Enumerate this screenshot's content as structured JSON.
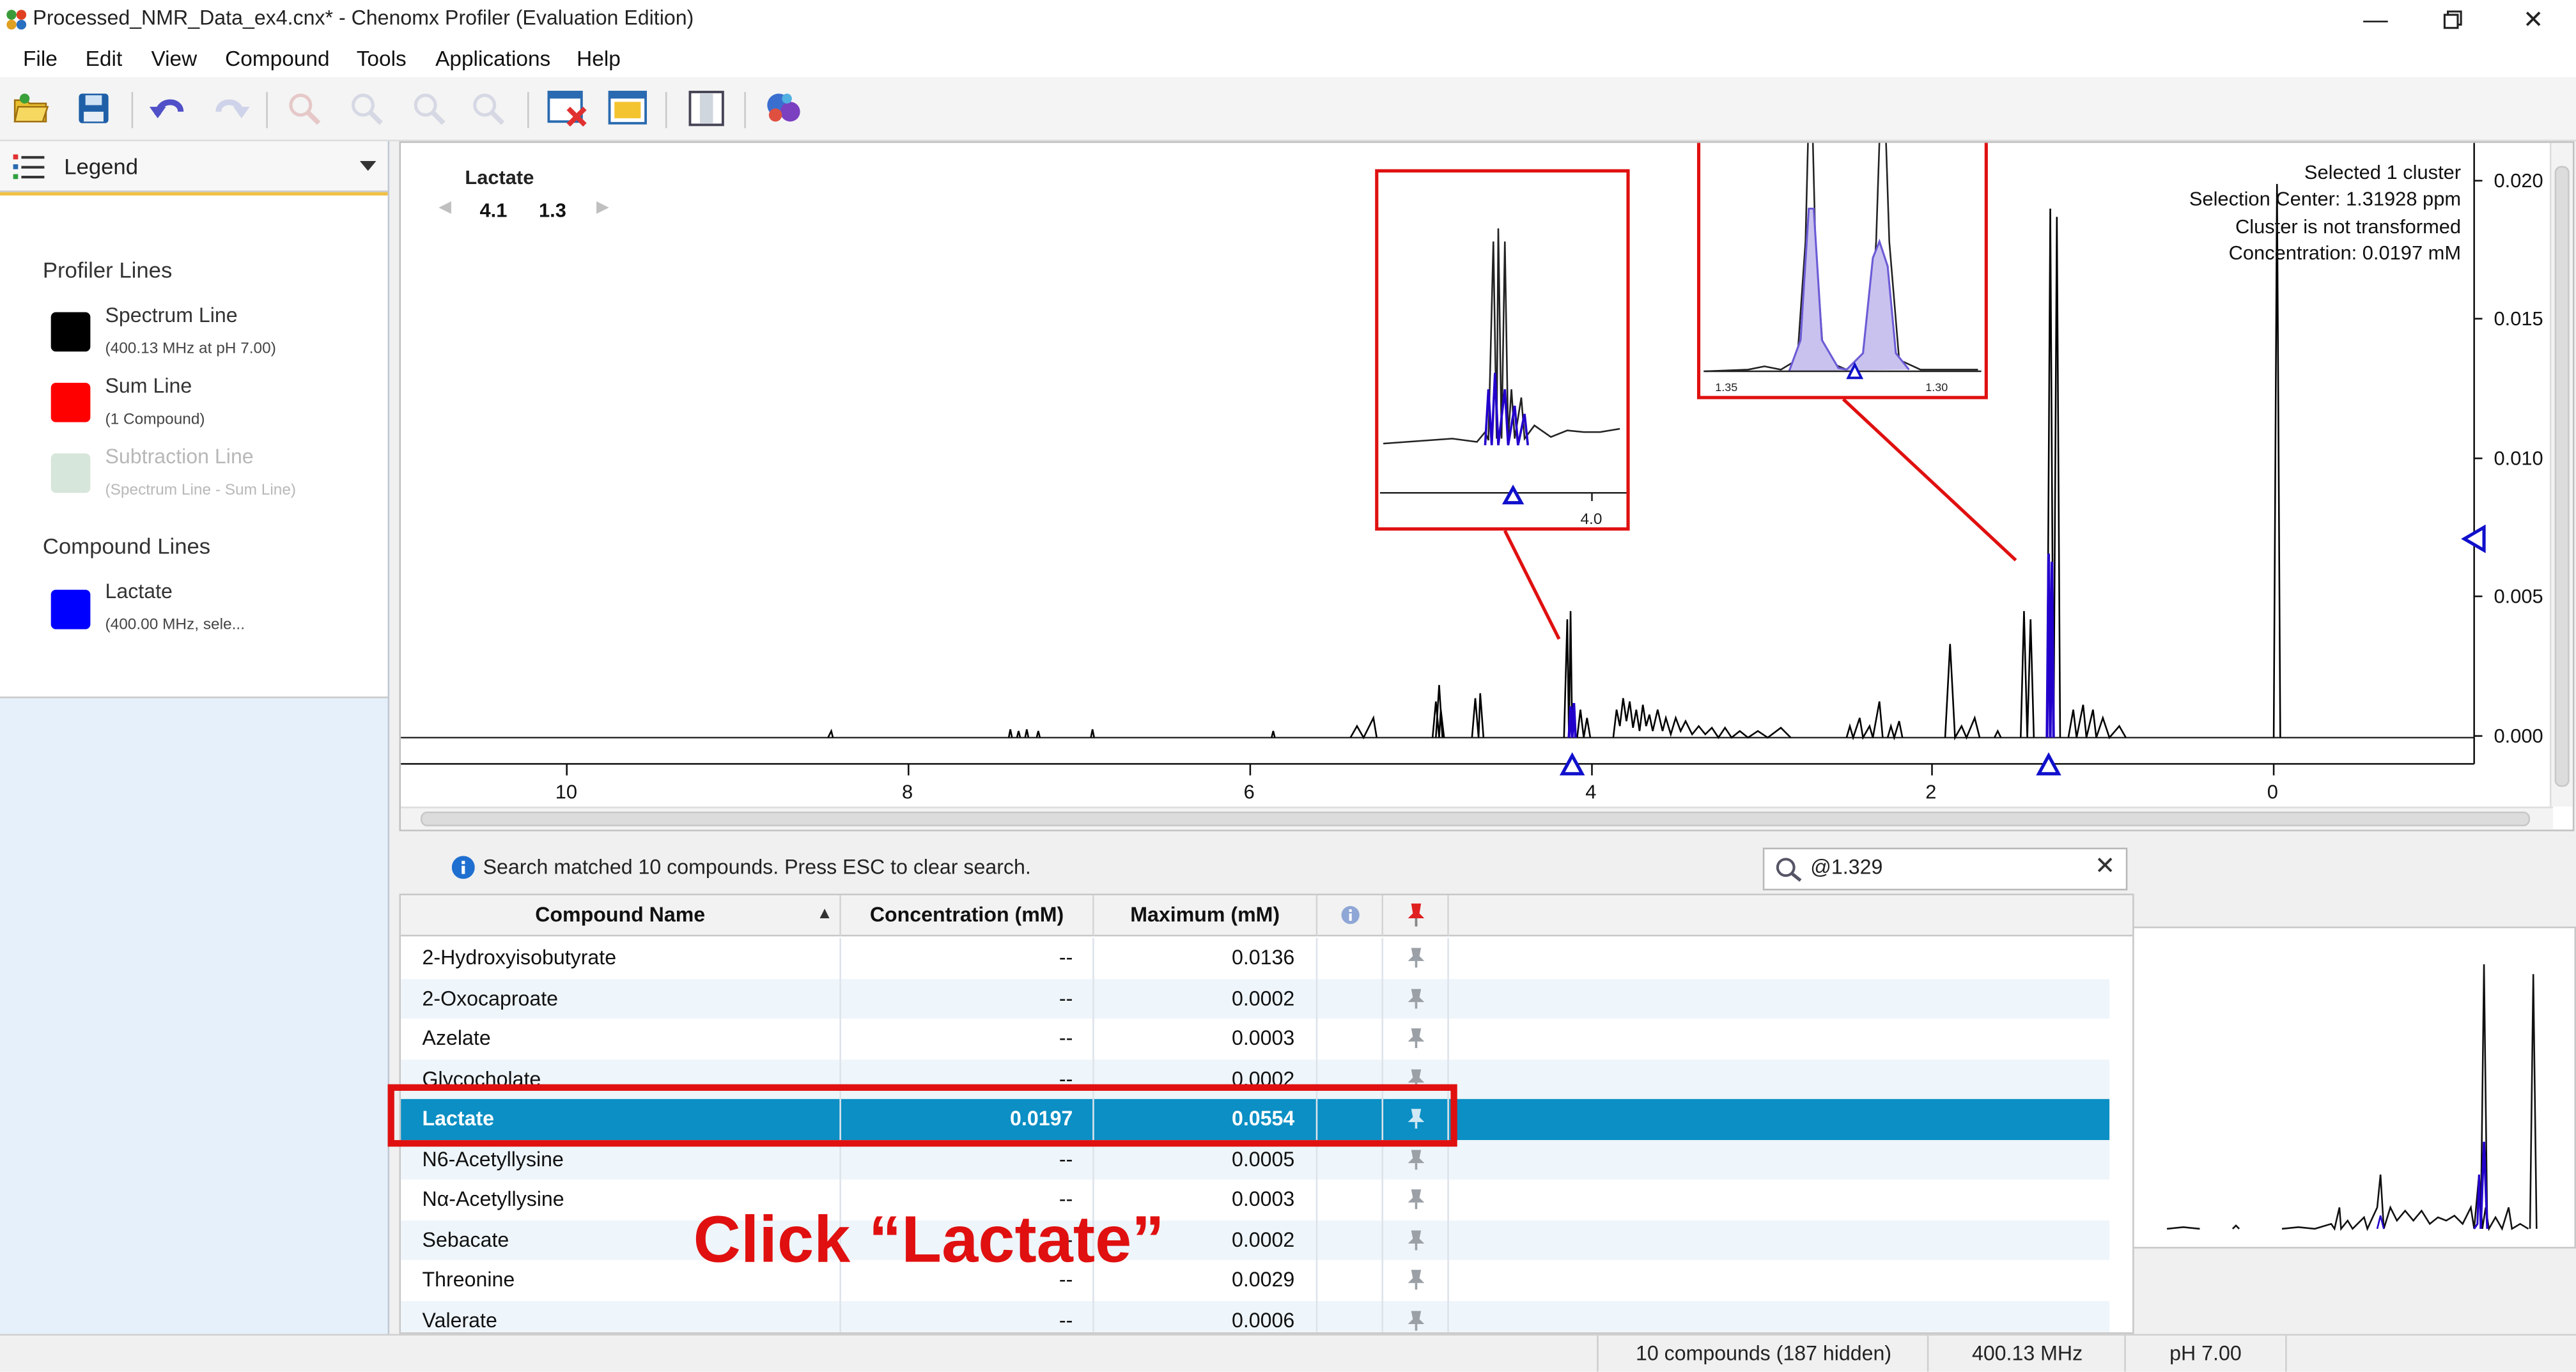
{
  "window": {
    "title": "Processed_NMR_Data_ex4.cnx* - Chenomx Profiler (Evaluation Edition)",
    "controls": [
      "minimize-icon",
      "restore-icon",
      "close-icon"
    ]
  },
  "menu": [
    "File",
    "Edit",
    "View",
    "Compound",
    "Tools",
    "Applications",
    "Help"
  ],
  "toolbar_icons": [
    "open-folder-icon",
    "save-icon",
    "undo-icon",
    "redo-icon",
    "zoom-in-icon",
    "zoom-out-icon",
    "zoom-fit-icon",
    "zoom-reset-icon",
    "clear-compounds-icon",
    "window-layout-icon",
    "split-panel-icon",
    "compound-library-icon"
  ],
  "legend": {
    "dropdown_label": "Legend",
    "profiler_lines_title": "Profiler Lines",
    "compound_lines_title": "Compound Lines",
    "items": [
      {
        "label": "Spectrum Line",
        "sub": "(400.13 MHz at pH 7.00)",
        "color": "#000000"
      },
      {
        "label": "Sum Line",
        "sub": "(1 Compound)",
        "color": "#ff0000"
      },
      {
        "label": "Subtraction Line",
        "sub": "(Spectrum Line  - Sum Line)",
        "color": "#d6e6da"
      }
    ],
    "compound_items": [
      {
        "label": "Lactate",
        "sub": "(400.00 MHz, sele...",
        "color": "#0000ff"
      }
    ]
  },
  "spectrum": {
    "compound_label": "Lactate",
    "cluster_values": [
      "4.1",
      "1.3"
    ],
    "info": {
      "line1": "Selected 1 cluster",
      "line2": "Selection Center: 1.31928 ppm",
      "line3": "Cluster is not transformed",
      "line4": "Concentration: 0.0197 mM"
    },
    "x_ticks": [
      "10",
      "8",
      "6",
      "4",
      "2",
      "0"
    ],
    "y_ticks": [
      "0.020",
      "0.015",
      "0.010",
      "0.005",
      "0.000"
    ],
    "inset1_tick": "4.0",
    "inset2_ticks": [
      "1.35",
      "1.30"
    ],
    "line_colors": {
      "spectrum": "#000000",
      "compound": "#2200cc",
      "marker": "#1010cc",
      "annotation": "#e01010"
    }
  },
  "search": {
    "message": "Search matched 10 compounds.  Press ESC to clear search.",
    "query": "@1.329"
  },
  "table": {
    "headers": {
      "name": "Compound Name",
      "conc": "Concentration (mM)",
      "max": "Maximum (mM)"
    },
    "rows": [
      {
        "name": "2-Hydroxyisobutyrate",
        "conc": "--",
        "max": "0.0136"
      },
      {
        "name": "2-Oxocaproate",
        "conc": "--",
        "max": "0.0002"
      },
      {
        "name": "Azelate",
        "conc": "--",
        "max": "0.0003"
      },
      {
        "name": "Glycocholate",
        "conc": "--",
        "max": "0.0002"
      },
      {
        "name": "Lactate",
        "conc": "0.0197",
        "max": "0.0554"
      },
      {
        "name": "N6-Acetyllysine",
        "conc": "--",
        "max": "0.0005"
      },
      {
        "name": "Nα-Acetyllysine",
        "conc": "--",
        "max": "0.0003"
      },
      {
        "name": "Sebacate",
        "conc": "--",
        "max": "0.0002"
      },
      {
        "name": "Threonine",
        "conc": "--",
        "max": "0.0029"
      },
      {
        "name": "Valerate",
        "conc": "--",
        "max": "0.0006"
      }
    ],
    "selected_index": 4
  },
  "annotation": {
    "text": "Click “Lactate”"
  },
  "status": {
    "compounds": "10 compounds (187 hidden)",
    "frequency": "400.13 MHz",
    "ph": "pH 7.00"
  }
}
